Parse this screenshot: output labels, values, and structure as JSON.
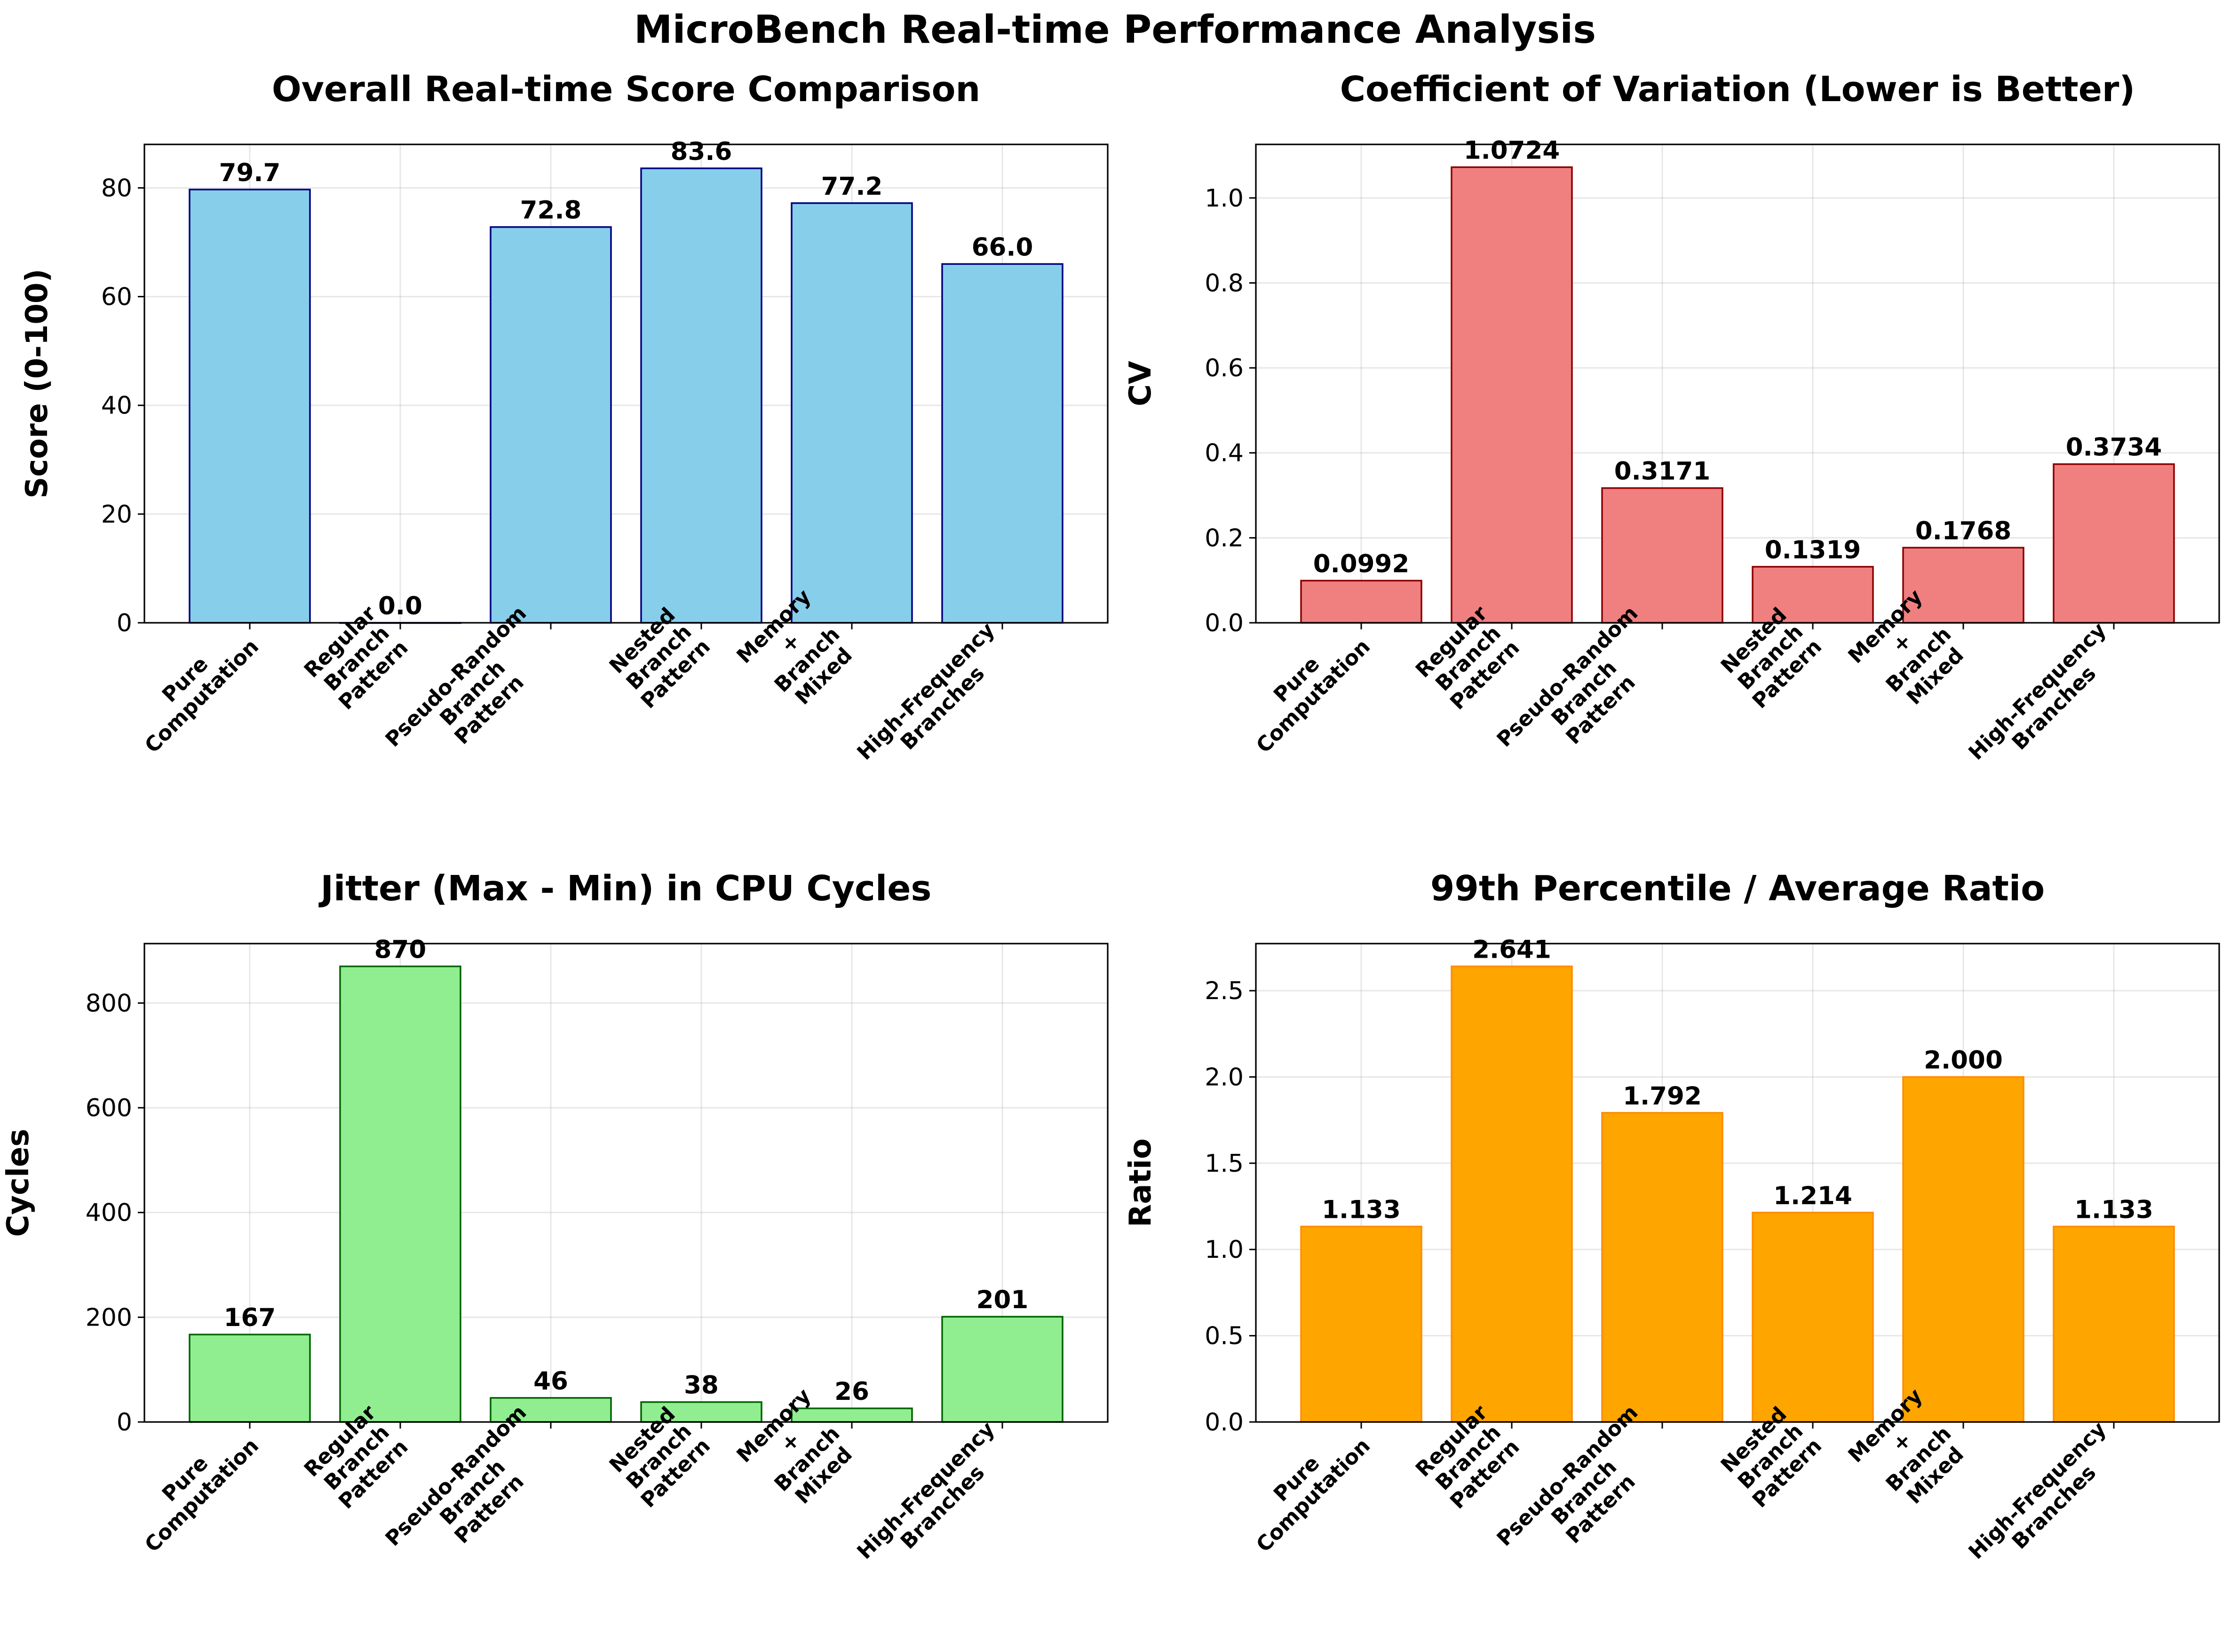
{
  "figure": {
    "title": "MicroBench Real-time Performance Analysis"
  },
  "chart_data": [
    {
      "type": "bar",
      "title": "Overall Real-time Score Comparison",
      "xlabel": "",
      "ylabel": "Score (0-100)",
      "categories": [
        [
          "Pure",
          "Computation"
        ],
        [
          "Regular",
          "Branch",
          "Pattern"
        ],
        [
          "Pseudo-Random",
          "Branch",
          "Pattern"
        ],
        [
          "Nested",
          "Branch",
          "Pattern"
        ],
        [
          "Memory",
          "+",
          "Branch",
          "Mixed"
        ],
        [
          "High-Frequency",
          "Branches"
        ]
      ],
      "values": [
        79.7,
        0.0,
        72.8,
        83.6,
        77.2,
        66.0
      ],
      "value_labels": [
        "79.7",
        "0.0",
        "72.8",
        "83.6",
        "77.2",
        "66.0"
      ],
      "ylim": [
        0,
        88
      ],
      "yticks": [
        0,
        20,
        40,
        60,
        80
      ],
      "ytick_labels": [
        "0",
        "20",
        "40",
        "60",
        "80"
      ],
      "color": "#87ceeb",
      "edge_color": "#000080",
      "grid": true,
      "legend": "none"
    },
    {
      "type": "bar",
      "title": "Coefficient of Variation (Lower is Better)",
      "xlabel": "",
      "ylabel": "CV",
      "categories": [
        [
          "Pure",
          "Computation"
        ],
        [
          "Regular",
          "Branch",
          "Pattern"
        ],
        [
          "Pseudo-Random",
          "Branch",
          "Pattern"
        ],
        [
          "Nested",
          "Branch",
          "Pattern"
        ],
        [
          "Memory",
          "+",
          "Branch",
          "Mixed"
        ],
        [
          "High-Frequency",
          "Branches"
        ]
      ],
      "values": [
        0.0992,
        1.0724,
        0.3171,
        0.1319,
        0.1768,
        0.3734
      ],
      "value_labels": [
        "0.0992",
        "1.0724",
        "0.3171",
        "0.1319",
        "0.1768",
        "0.3734"
      ],
      "ylim": [
        0,
        1.126
      ],
      "yticks": [
        0.0,
        0.2,
        0.4,
        0.6,
        0.8,
        1.0
      ],
      "ytick_labels": [
        "0.0",
        "0.2",
        "0.4",
        "0.6",
        "0.8",
        "1.0"
      ],
      "color": "#f08080",
      "edge_color": "#8b0000",
      "grid": true,
      "legend": "none"
    },
    {
      "type": "bar",
      "title": "Jitter (Max - Min) in CPU Cycles",
      "xlabel": "",
      "ylabel": "Cycles",
      "categories": [
        [
          "Pure",
          "Computation"
        ],
        [
          "Regular",
          "Branch",
          "Pattern"
        ],
        [
          "Pseudo-Random",
          "Branch",
          "Pattern"
        ],
        [
          "Nested",
          "Branch",
          "Pattern"
        ],
        [
          "Memory",
          "+",
          "Branch",
          "Mixed"
        ],
        [
          "High-Frequency",
          "Branches"
        ]
      ],
      "values": [
        167,
        870,
        46,
        38,
        26,
        201
      ],
      "value_labels": [
        "167",
        "870",
        "46",
        "38",
        "26",
        "201"
      ],
      "ylim": [
        0,
        913.5
      ],
      "yticks": [
        0,
        200,
        400,
        600,
        800
      ],
      "ytick_labels": [
        "0",
        "200",
        "400",
        "600",
        "800"
      ],
      "color": "#90ee90",
      "edge_color": "#006400",
      "grid": true,
      "legend": "none"
    },
    {
      "type": "bar",
      "title": "99th Percentile / Average Ratio",
      "xlabel": "",
      "ylabel": "Ratio",
      "categories": [
        [
          "Pure",
          "Computation"
        ],
        [
          "Regular",
          "Branch",
          "Pattern"
        ],
        [
          "Pseudo-Random",
          "Branch",
          "Pattern"
        ],
        [
          "Nested",
          "Branch",
          "Pattern"
        ],
        [
          "Memory",
          "+",
          "Branch",
          "Mixed"
        ],
        [
          "High-Frequency",
          "Branches"
        ]
      ],
      "values": [
        1.133,
        2.641,
        1.792,
        1.214,
        2.0,
        1.133
      ],
      "value_labels": [
        "1.133",
        "2.641",
        "1.792",
        "1.214",
        "2.000",
        "1.133"
      ],
      "ylim": [
        0,
        2.773
      ],
      "yticks": [
        0.0,
        0.5,
        1.0,
        1.5,
        2.0,
        2.5
      ],
      "ytick_labels": [
        "0.0",
        "0.5",
        "1.0",
        "1.5",
        "2.0",
        "2.5"
      ],
      "color": "#ffa500",
      "edge_color": "#ff8c00",
      "grid": true,
      "legend": "none"
    }
  ]
}
